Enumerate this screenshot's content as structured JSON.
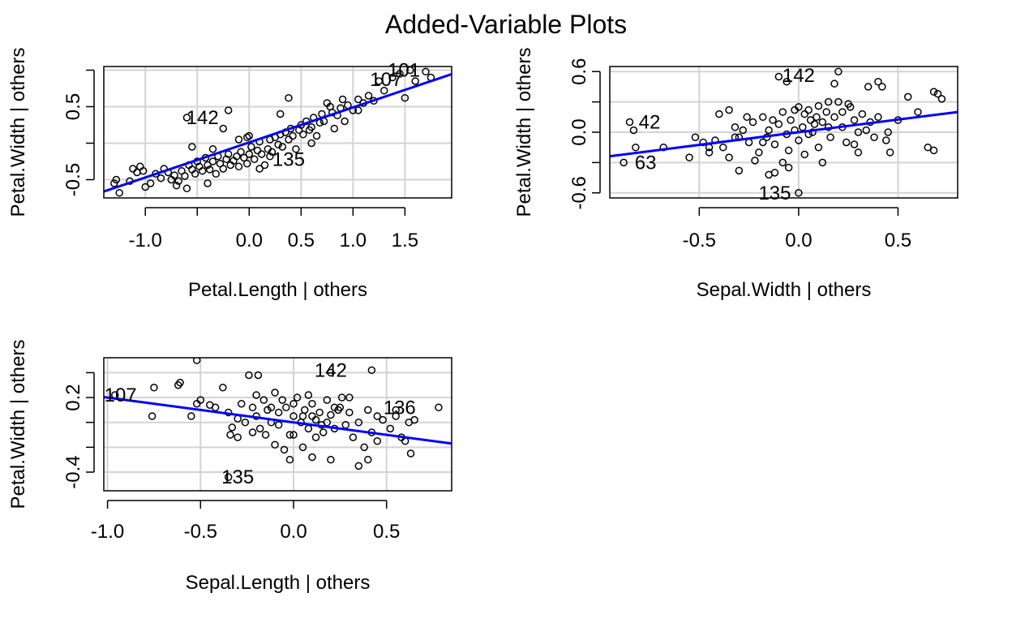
{
  "title": "Added-Variable Plots",
  "colors": {
    "grid": "#d3d3d3",
    "fit": "#0000ff",
    "points": "#000000",
    "frame": "#000000"
  },
  "chart_data": [
    {
      "type": "scatter",
      "xlabel": "Petal.Length | others",
      "ylabel": "Petal.Width  | others",
      "xlim": [
        -1.4,
        1.95
      ],
      "ylim": [
        -0.75,
        1.05
      ],
      "xticks": [
        -1.0,
        0.0,
        0.5,
        1.0,
        1.5
      ],
      "xtick_labels": [
        "-1.0",
        "0.0",
        "0.5",
        "1.0",
        "1.5"
      ],
      "xgrid": [
        -1.0,
        -0.5,
        0.0,
        0.5,
        1.0,
        1.5
      ],
      "yticks": [
        -0.5,
        0.5
      ],
      "ytick_labels": [
        "-0.5",
        "0.5"
      ],
      "ygrid": [
        -0.5,
        0.0,
        0.5,
        1.0
      ],
      "grid": true,
      "fit_line": {
        "slope": 0.48,
        "intercept": 0.01
      },
      "points": [
        [
          -1.15,
          -0.52
        ],
        [
          -1.28,
          -0.5
        ],
        [
          -1.3,
          -0.55
        ],
        [
          -1.25,
          -0.68
        ],
        [
          -1.12,
          -0.35
        ],
        [
          -1.05,
          -0.32
        ],
        [
          -1.08,
          -0.4
        ],
        [
          -1.02,
          -0.38
        ],
        [
          -1.0,
          -0.6
        ],
        [
          -0.95,
          -0.55
        ],
        [
          -0.9,
          -0.42
        ],
        [
          -0.85,
          -0.48
        ],
        [
          -0.82,
          -0.35
        ],
        [
          -0.78,
          -0.4
        ],
        [
          -0.75,
          -0.5
        ],
        [
          -0.72,
          -0.44
        ],
        [
          -0.7,
          -0.58
        ],
        [
          -0.68,
          -0.52
        ],
        [
          -0.65,
          -0.38
        ],
        [
          -0.62,
          -0.45
        ],
        [
          -0.6,
          -0.62
        ],
        [
          -0.58,
          -0.3
        ],
        [
          -0.55,
          -0.36
        ],
        [
          -0.52,
          -0.42
        ],
        [
          -0.5,
          -0.25
        ],
        [
          -0.48,
          -0.32
        ],
        [
          -0.45,
          -0.38
        ],
        [
          -0.42,
          -0.2
        ],
        [
          -0.4,
          -0.3
        ],
        [
          -0.38,
          -0.36
        ],
        [
          -0.35,
          -0.25
        ],
        [
          -0.32,
          -0.42
        ],
        [
          -0.3,
          -0.18
        ],
        [
          -0.28,
          -0.28
        ],
        [
          -0.25,
          -0.35
        ],
        [
          -0.22,
          -0.22
        ],
        [
          -0.2,
          -0.15
        ],
        [
          -0.18,
          -0.3
        ],
        [
          -0.15,
          -0.24
        ],
        [
          -0.12,
          -0.18
        ],
        [
          -0.1,
          -0.32
        ],
        [
          -0.08,
          -0.12
        ],
        [
          -0.05,
          -0.2
        ],
        [
          -0.02,
          -0.28
        ],
        [
          0.0,
          -0.15
        ],
        [
          0.02,
          -0.05
        ],
        [
          0.05,
          -0.22
        ],
        [
          0.08,
          -0.1
        ],
        [
          0.1,
          0.02
        ],
        [
          0.12,
          -0.15
        ],
        [
          0.15,
          -0.3
        ],
        [
          0.18,
          -0.08
        ],
        [
          0.2,
          0.05
        ],
        [
          0.22,
          -0.12
        ],
        [
          0.25,
          0.08
        ],
        [
          0.28,
          -0.02
        ],
        [
          0.3,
          0.12
        ],
        [
          0.32,
          -0.05
        ],
        [
          0.35,
          0.15
        ],
        [
          0.38,
          0.05
        ],
        [
          0.4,
          0.2
        ],
        [
          0.42,
          0.1
        ],
        [
          0.45,
          -0.08
        ],
        [
          0.48,
          0.18
        ],
        [
          0.5,
          0.25
        ],
        [
          0.52,
          0.12
        ],
        [
          0.55,
          0.3
        ],
        [
          0.58,
          0.18
        ],
        [
          0.6,
          0.22
        ],
        [
          0.62,
          0.35
        ],
        [
          0.65,
          0.1
        ],
        [
          0.68,
          0.28
        ],
        [
          0.7,
          0.4
        ],
        [
          0.72,
          0.3
        ],
        [
          0.75,
          0.55
        ],
        [
          0.78,
          0.5
        ],
        [
          0.8,
          0.42
        ],
        [
          0.82,
          0.2
        ],
        [
          0.85,
          0.38
        ],
        [
          0.88,
          0.48
        ],
        [
          0.92,
          0.3
        ],
        [
          0.95,
          0.52
        ],
        [
          1.0,
          0.45
        ],
        [
          1.05,
          0.6
        ],
        [
          1.1,
          0.55
        ],
        [
          1.15,
          0.65
        ],
        [
          1.2,
          0.58
        ],
        [
          1.25,
          0.85
        ],
        [
          1.3,
          0.72
        ],
        [
          1.38,
          0.9
        ],
        [
          1.45,
          0.95
        ],
        [
          1.5,
          0.62
        ],
        [
          1.55,
          1.0
        ],
        [
          1.6,
          0.85
        ],
        [
          1.7,
          0.98
        ],
        [
          1.75,
          0.9
        ],
        [
          -0.6,
          0.35
        ],
        [
          -0.2,
          0.45
        ],
        [
          0.38,
          0.62
        ],
        [
          -0.55,
          -0.05
        ],
        [
          0.6,
          0.0
        ],
        [
          0.2,
          -0.18
        ],
        [
          -0.4,
          -0.55
        ],
        [
          0.1,
          -0.35
        ],
        [
          -0.1,
          0.05
        ],
        [
          0.0,
          0.1
        ],
        [
          -0.35,
          -0.08
        ],
        [
          0.3,
          0.4
        ],
        [
          0.9,
          0.6
        ],
        [
          1.05,
          0.45
        ],
        [
          -0.25,
          0.2
        ],
        [
          -0.02,
          0.08
        ]
      ],
      "labels": [
        {
          "text": "101",
          "x": 1.49,
          "y": 1.0
        },
        {
          "text": "107",
          "x": 1.32,
          "y": 0.87
        },
        {
          "text": "142",
          "x": -0.45,
          "y": 0.35
        },
        {
          "text": "135",
          "x": 0.38,
          "y": -0.22
        }
      ]
    },
    {
      "type": "scatter",
      "xlabel": "Sepal.Width | others",
      "ylabel": "Petal.Width  | others",
      "xlim": [
        -0.95,
        0.8
      ],
      "ylim": [
        -0.65,
        0.65
      ],
      "xticks": [
        -0.5,
        0.0,
        0.5
      ],
      "xtick_labels": [
        "-0.5",
        "0.0",
        "0.5"
      ],
      "xgrid": [
        -0.5,
        0.0,
        0.5
      ],
      "yticks": [
        -0.6,
        0.0,
        0.6
      ],
      "ytick_labels": [
        "-0.6",
        "0.0",
        "0.6"
      ],
      "ygrid": [
        -0.6,
        -0.3,
        0.0,
        0.3,
        0.6
      ],
      "grid": true,
      "fit_line": {
        "slope": 0.25,
        "intercept": 0.0
      },
      "points": [
        [
          -0.85,
          0.1
        ],
        [
          -0.83,
          0.02
        ],
        [
          -0.82,
          -0.15
        ],
        [
          -0.88,
          -0.3
        ],
        [
          -0.68,
          -0.15
        ],
        [
          -0.55,
          -0.25
        ],
        [
          -0.52,
          -0.05
        ],
        [
          -0.48,
          -0.1
        ],
        [
          -0.45,
          -0.2
        ],
        [
          -0.42,
          -0.08
        ],
        [
          -0.4,
          0.18
        ],
        [
          -0.38,
          -0.15
        ],
        [
          -0.35,
          -0.25
        ],
        [
          -0.32,
          0.05
        ],
        [
          -0.3,
          -0.05
        ],
        [
          -0.3,
          -0.38
        ],
        [
          -0.28,
          0.02
        ],
        [
          -0.25,
          -0.1
        ],
        [
          -0.23,
          0.1
        ],
        [
          -0.2,
          -0.2
        ],
        [
          -0.18,
          0.15
        ],
        [
          -0.16,
          -0.05
        ],
        [
          -0.15,
          0.02
        ],
        [
          -0.13,
          0.12
        ],
        [
          -0.12,
          -0.12
        ],
        [
          -0.1,
          0.08
        ],
        [
          -0.08,
          0.2
        ],
        [
          -0.06,
          -0.02
        ],
        [
          -0.05,
          -0.18
        ],
        [
          -0.04,
          0.12
        ],
        [
          -0.02,
          0.22
        ],
        [
          0.0,
          -0.08
        ],
        [
          0.02,
          0.05
        ],
        [
          0.03,
          0.18
        ],
        [
          0.05,
          -0.02
        ],
        [
          0.06,
          0.12
        ],
        [
          0.08,
          0.08
        ],
        [
          0.1,
          -0.15
        ],
        [
          0.12,
          0.1
        ],
        [
          0.14,
          0.2
        ],
        [
          0.16,
          -0.05
        ],
        [
          0.18,
          0.15
        ],
        [
          0.2,
          0.3
        ],
        [
          0.22,
          0.05
        ],
        [
          0.24,
          -0.1
        ],
        [
          0.26,
          0.25
        ],
        [
          0.28,
          0.12
        ],
        [
          0.3,
          -0.2
        ],
        [
          0.32,
          0.18
        ],
        [
          0.34,
          0.02
        ],
        [
          0.36,
          0.1
        ],
        [
          0.38,
          -0.05
        ],
        [
          0.4,
          0.15
        ],
        [
          0.42,
          0.45
        ],
        [
          0.44,
          -0.08
        ],
        [
          0.46,
          -0.2
        ],
        [
          0.5,
          0.12
        ],
        [
          0.55,
          0.35
        ],
        [
          0.6,
          0.2
        ],
        [
          0.65,
          -0.15
        ],
        [
          0.68,
          0.4
        ],
        [
          0.7,
          0.38
        ],
        [
          0.72,
          0.33
        ],
        [
          0.68,
          -0.18
        ],
        [
          -0.1,
          0.55
        ],
        [
          -0.06,
          0.5
        ],
        [
          0.18,
          0.48
        ],
        [
          0.2,
          0.6
        ],
        [
          0.35,
          0.45
        ],
        [
          0.4,
          0.5
        ],
        [
          -0.15,
          -0.42
        ],
        [
          -0.12,
          -0.4
        ],
        [
          -0.08,
          -0.3
        ],
        [
          -0.05,
          -0.35
        ],
        [
          0.05,
          0.22
        ],
        [
          0.1,
          0.26
        ],
        [
          0.15,
          0.3
        ],
        [
          0.25,
          0.28
        ],
        [
          -0.22,
          -0.28
        ],
        [
          -0.18,
          -0.1
        ],
        [
          -0.35,
          0.22
        ],
        [
          0.0,
          0.25
        ],
        [
          0.03,
          -0.22
        ],
        [
          0.12,
          -0.3
        ],
        [
          0.28,
          -0.12
        ],
        [
          -0.26,
          0.15
        ],
        [
          -0.02,
          0.02
        ],
        [
          0.07,
          0.0
        ],
        [
          0.09,
          0.15
        ],
        [
          0.15,
          0.05
        ],
        [
          0.22,
          0.2
        ],
        [
          0.3,
          0.0
        ],
        [
          0.45,
          0.0
        ],
        [
          -0.45,
          -0.15
        ],
        [
          -0.32,
          -0.05
        ],
        [
          0.0,
          -0.6
        ]
      ],
      "labels": [
        {
          "text": "142",
          "x": 0.0,
          "y": 0.56
        },
        {
          "text": "42",
          "x": -0.75,
          "y": 0.1
        },
        {
          "text": "63",
          "x": -0.77,
          "y": -0.3
        },
        {
          "text": "135",
          "x": -0.12,
          "y": -0.6
        }
      ]
    },
    {
      "type": "scatter",
      "xlabel": "Sepal.Length | others",
      "ylabel": "Petal.Width  | others",
      "xlim": [
        -1.02,
        0.85
      ],
      "ylim": [
        -0.55,
        0.52
      ],
      "xticks": [
        -1.0,
        -0.5,
        0.0,
        0.5
      ],
      "xtick_labels": [
        "-1.0",
        "-0.5",
        "0.0",
        "0.5"
      ],
      "xgrid": [
        -1.0,
        -0.5,
        0.0,
        0.5
      ],
      "yticks": [
        0.2,
        -0.4
      ],
      "ytick_labels": [
        "0.2",
        "-0.4"
      ],
      "ygrid": [
        -0.4,
        -0.2,
        0.0,
        0.2,
        0.4
      ],
      "grid": true,
      "fit_line": {
        "slope": -0.2,
        "intercept": -0.0
      },
      "points": [
        [
          -0.96,
          0.22
        ],
        [
          -0.75,
          0.28
        ],
        [
          -0.76,
          0.05
        ],
        [
          -0.62,
          0.3
        ],
        [
          -0.61,
          0.32
        ],
        [
          -0.52,
          0.5
        ],
        [
          -0.52,
          0.15
        ],
        [
          -0.55,
          0.05
        ],
        [
          -0.5,
          0.18
        ],
        [
          -0.42,
          0.12
        ],
        [
          -0.38,
          0.28
        ],
        [
          -0.35,
          0.08
        ],
        [
          -0.33,
          -0.04
        ],
        [
          -0.3,
          0.03
        ],
        [
          -0.28,
          0.15
        ],
        [
          -0.26,
          0.0
        ],
        [
          -0.24,
          0.38
        ],
        [
          -0.22,
          0.12
        ],
        [
          -0.2,
          0.05
        ],
        [
          -0.19,
          0.38
        ],
        [
          -0.18,
          -0.05
        ],
        [
          -0.16,
          0.18
        ],
        [
          -0.14,
          0.1
        ],
        [
          -0.12,
          0.0
        ],
        [
          -0.1,
          0.24
        ],
        [
          -0.08,
          -0.02
        ],
        [
          -0.06,
          0.18
        ],
        [
          -0.04,
          0.12
        ],
        [
          -0.02,
          -0.1
        ],
        [
          0.0,
          0.05
        ],
        [
          0.02,
          0.2
        ],
        [
          0.04,
          0.0
        ],
        [
          0.06,
          0.1
        ],
        [
          0.08,
          -0.05
        ],
        [
          0.1,
          0.15
        ],
        [
          0.12,
          0.02
        ],
        [
          0.14,
          0.08
        ],
        [
          0.16,
          -0.08
        ],
        [
          0.18,
          0.18
        ],
        [
          0.2,
          0.06
        ],
        [
          0.22,
          -0.05
        ],
        [
          0.24,
          0.1
        ],
        [
          0.26,
          0.2
        ],
        [
          0.28,
          -0.02
        ],
        [
          0.3,
          0.08
        ],
        [
          0.32,
          -0.12
        ],
        [
          0.35,
          0.0
        ],
        [
          0.38,
          -0.2
        ],
        [
          0.4,
          0.1
        ],
        [
          0.42,
          -0.08
        ],
        [
          0.45,
          -0.15
        ],
        [
          0.48,
          0.02
        ],
        [
          0.52,
          -0.05
        ],
        [
          0.55,
          0.05
        ],
        [
          0.58,
          -0.12
        ],
        [
          0.6,
          -0.15
        ],
        [
          0.62,
          0.0
        ],
        [
          0.63,
          -0.25
        ],
        [
          0.65,
          0.02
        ],
        [
          0.78,
          0.12
        ],
        [
          -0.34,
          -0.1
        ],
        [
          -0.3,
          -0.12
        ],
        [
          -0.22,
          -0.08
        ],
        [
          -0.15,
          -0.1
        ],
        [
          -0.1,
          -0.18
        ],
        [
          -0.05,
          -0.22
        ],
        [
          0.0,
          -0.1
        ],
        [
          0.05,
          -0.2
        ],
        [
          0.1,
          -0.28
        ],
        [
          0.2,
          -0.3
        ],
        [
          0.35,
          -0.35
        ],
        [
          0.4,
          -0.3
        ],
        [
          -0.02,
          -0.3
        ],
        [
          0.1,
          0.05
        ],
        [
          0.15,
          -0.02
        ],
        [
          0.25,
          0.12
        ],
        [
          -0.45,
          0.14
        ],
        [
          -0.2,
          0.22
        ],
        [
          0.0,
          0.15
        ],
        [
          0.08,
          0.22
        ],
        [
          0.12,
          -0.12
        ],
        [
          0.18,
          0.0
        ],
        [
          -0.12,
          0.12
        ],
        [
          0.3,
          0.2
        ],
        [
          -0.08,
          0.08
        ],
        [
          0.05,
          0.05
        ],
        [
          0.22,
          0.12
        ],
        [
          -0.35,
          -0.44
        ],
        [
          0.2,
          0.4
        ],
        [
          0.42,
          0.42
        ],
        [
          0.55,
          0.1
        ],
        [
          0.45,
          0.05
        ]
      ],
      "labels": [
        {
          "text": "142",
          "x": 0.2,
          "y": 0.42
        },
        {
          "text": "107",
          "x": -0.93,
          "y": 0.22
        },
        {
          "text": "136",
          "x": 0.57,
          "y": 0.12
        },
        {
          "text": "135",
          "x": -0.3,
          "y": -0.44
        }
      ]
    }
  ]
}
